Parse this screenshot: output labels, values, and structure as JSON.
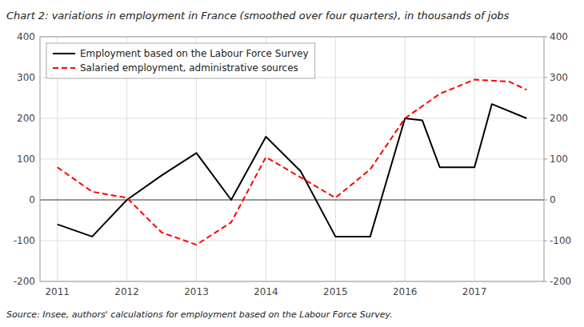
{
  "chart_data": {
    "type": "line",
    "title": "Chart 2: variations in employment in France (smoothed over four quarters), in thousands of jobs",
    "annotations": [
      "Source: Insee, authors' calculations for employment based on the Labour Force Survey."
    ],
    "xlim": [
      2010.75,
      2018.0
    ],
    "xticks": [
      2011,
      2012,
      2013,
      2014,
      2015,
      2016,
      2017
    ],
    "ylim": [
      -200,
      400
    ],
    "yticks": [
      -200,
      -100,
      0,
      100,
      200,
      300,
      400
    ],
    "y2lim": [
      -200,
      400
    ],
    "y2ticks": [
      -200,
      -100,
      0,
      100,
      200,
      300,
      400
    ],
    "grid": true,
    "legend": "upper left",
    "series": [
      {
        "name": "Employment based on the Labour Force Survey",
        "color": "#000000",
        "line_style": "solid",
        "x": [
          2011.0,
          2011.5,
          2012.0,
          2012.5,
          2013.0,
          2013.5,
          2014.0,
          2014.5,
          2015.0,
          2015.5,
          2016.0,
          2016.25,
          2016.5,
          2017.0,
          2017.25,
          2017.75
        ],
        "values": [
          -60,
          -90,
          0,
          60,
          115,
          0,
          155,
          70,
          -90,
          -90,
          200,
          195,
          80,
          80,
          235,
          200
        ]
      },
      {
        "name": "Salaried employment, administrative sources",
        "color": "#ff0000",
        "line_style": "dashed",
        "x": [
          2011.0,
          2011.5,
          2012.0,
          2012.5,
          2013.0,
          2013.5,
          2014.0,
          2014.5,
          2015.0,
          2015.5,
          2016.0,
          2016.5,
          2017.0,
          2017.5,
          2017.75
        ],
        "values": [
          80,
          20,
          5,
          -80,
          -110,
          -55,
          105,
          55,
          5,
          75,
          200,
          260,
          295,
          290,
          270
        ]
      }
    ]
  }
}
